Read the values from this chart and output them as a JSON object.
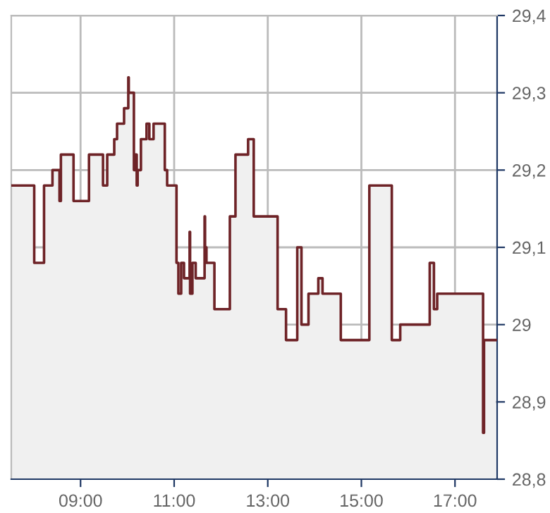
{
  "chart_data": {
    "type": "step",
    "x": [
      7.52,
      8.01,
      8.22,
      8.4,
      8.55,
      8.58,
      8.85,
      9.18,
      9.48,
      9.57,
      9.72,
      9.78,
      9.93,
      10.02,
      10.03,
      10.14,
      10.17,
      10.2,
      10.22,
      10.29,
      10.41,
      10.47,
      10.56,
      10.8,
      10.85,
      11.05,
      11.09,
      11.15,
      11.21,
      11.33,
      11.34,
      11.39,
      11.46,
      11.65,
      11.66,
      11.69,
      11.86,
      12.19,
      12.31,
      12.58,
      12.7,
      13.21,
      13.39,
      13.63,
      13.72,
      13.87,
      14.08,
      14.17,
      14.56,
      15.17,
      15.65,
      15.83,
      16.46,
      16.55,
      16.62,
      17.6,
      17.62,
      17.87
    ],
    "series": [
      {
        "type": "area",
        "color": "#f0f0f0",
        "values": [
          29.18,
          29.08,
          29.18,
          29.2,
          29.16,
          29.22,
          29.16,
          29.22,
          29.18,
          29.22,
          29.24,
          29.26,
          29.28,
          29.32,
          29.3,
          29.2,
          29.22,
          29.18,
          29.2,
          29.24,
          29.26,
          29.24,
          29.26,
          29.2,
          29.18,
          29.08,
          29.04,
          29.08,
          29.06,
          29.12,
          29.04,
          29.08,
          29.06,
          29.14,
          29.1,
          29.08,
          29.02,
          29.14,
          29.22,
          29.24,
          29.14,
          29.02,
          28.98,
          29.1,
          29.0,
          29.04,
          29.06,
          29.04,
          28.98,
          29.18,
          28.98,
          29.0,
          29.08,
          29.02,
          29.04,
          28.86,
          28.98,
          28.98
        ]
      },
      {
        "color": "#6e2327",
        "values": [
          29.18,
          29.08,
          29.18,
          29.2,
          29.16,
          29.22,
          29.16,
          29.22,
          29.18,
          29.22,
          29.24,
          29.26,
          29.28,
          29.32,
          29.3,
          29.2,
          29.22,
          29.18,
          29.2,
          29.24,
          29.26,
          29.24,
          29.26,
          29.2,
          29.18,
          29.08,
          29.04,
          29.08,
          29.06,
          29.12,
          29.04,
          29.08,
          29.06,
          29.14,
          29.1,
          29.08,
          29.02,
          29.14,
          29.22,
          29.24,
          29.14,
          29.02,
          28.98,
          29.1,
          29.0,
          29.04,
          29.06,
          29.04,
          28.98,
          29.18,
          28.98,
          29.0,
          29.08,
          29.02,
          29.04,
          28.86,
          28.98,
          28.98
        ]
      }
    ],
    "xlim": [
      7.52,
      17.9
    ],
    "ylim": [
      28.8,
      29.4
    ],
    "xticks": [
      {
        "value": 9,
        "label": "09:00"
      },
      {
        "value": 11,
        "label": "11:00"
      },
      {
        "value": 13,
        "label": "13:00"
      },
      {
        "value": 15,
        "label": "15:00"
      },
      {
        "value": 17,
        "label": "17:00"
      }
    ],
    "yticks": [
      {
        "value": 28.8,
        "label": "28,8"
      },
      {
        "value": 28.9,
        "label": "28,9"
      },
      29,
      {
        "value": 29.1,
        "label": "29,1"
      },
      {
        "value": 29.2,
        "label": "29,2"
      },
      {
        "value": 29.3,
        "label": "29,3"
      },
      {
        "value": 29.4,
        "label": "29,4"
      }
    ],
    "grid": true
  }
}
